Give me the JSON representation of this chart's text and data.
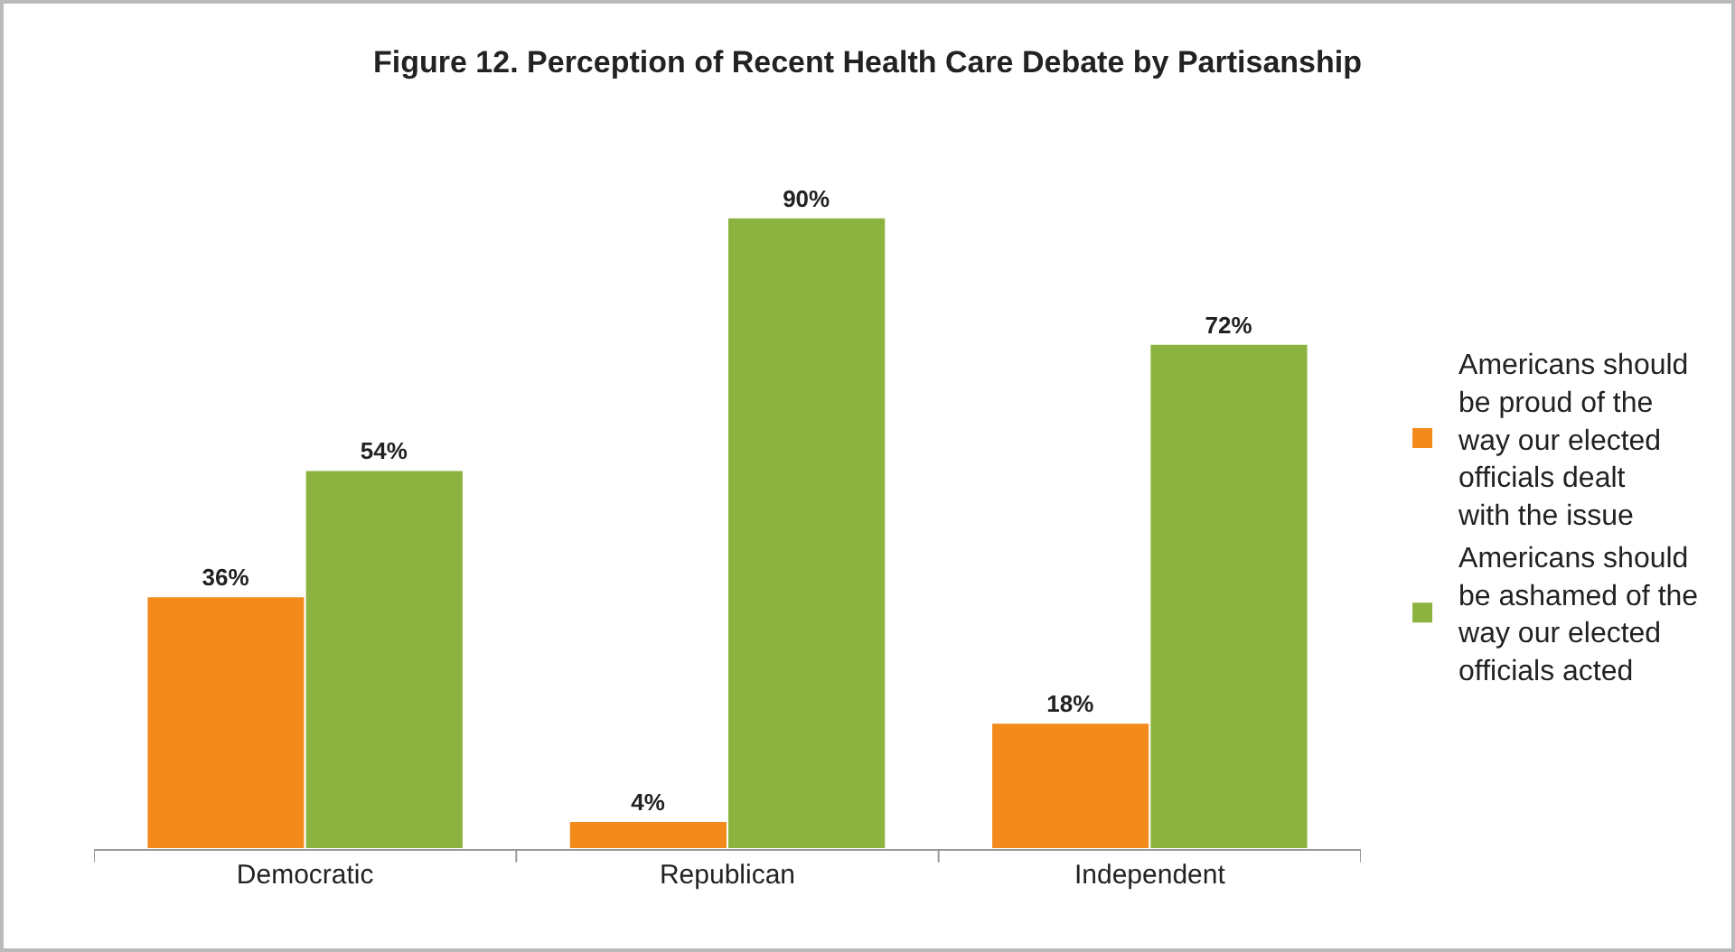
{
  "chart_data": {
    "type": "bar",
    "title": "Figure 12. Perception of Recent Health Care Debate by Partisanship",
    "categories": [
      "Democratic",
      "Republican",
      "Independent"
    ],
    "series": [
      {
        "name": "Americans should be proud of the way our elected officials dealt with the issue",
        "color": "#f28a1c",
        "values": [
          36,
          4,
          18
        ],
        "value_labels": [
          "36%",
          "4%",
          "18%"
        ]
      },
      {
        "name": "Americans should be ashamed of the way our elected officials acted",
        "color": "#8cb33f",
        "values": [
          54,
          90,
          72
        ],
        "value_labels": [
          "54%",
          "90%",
          "72%"
        ]
      }
    ],
    "legend": "right",
    "grid": false
  }
}
